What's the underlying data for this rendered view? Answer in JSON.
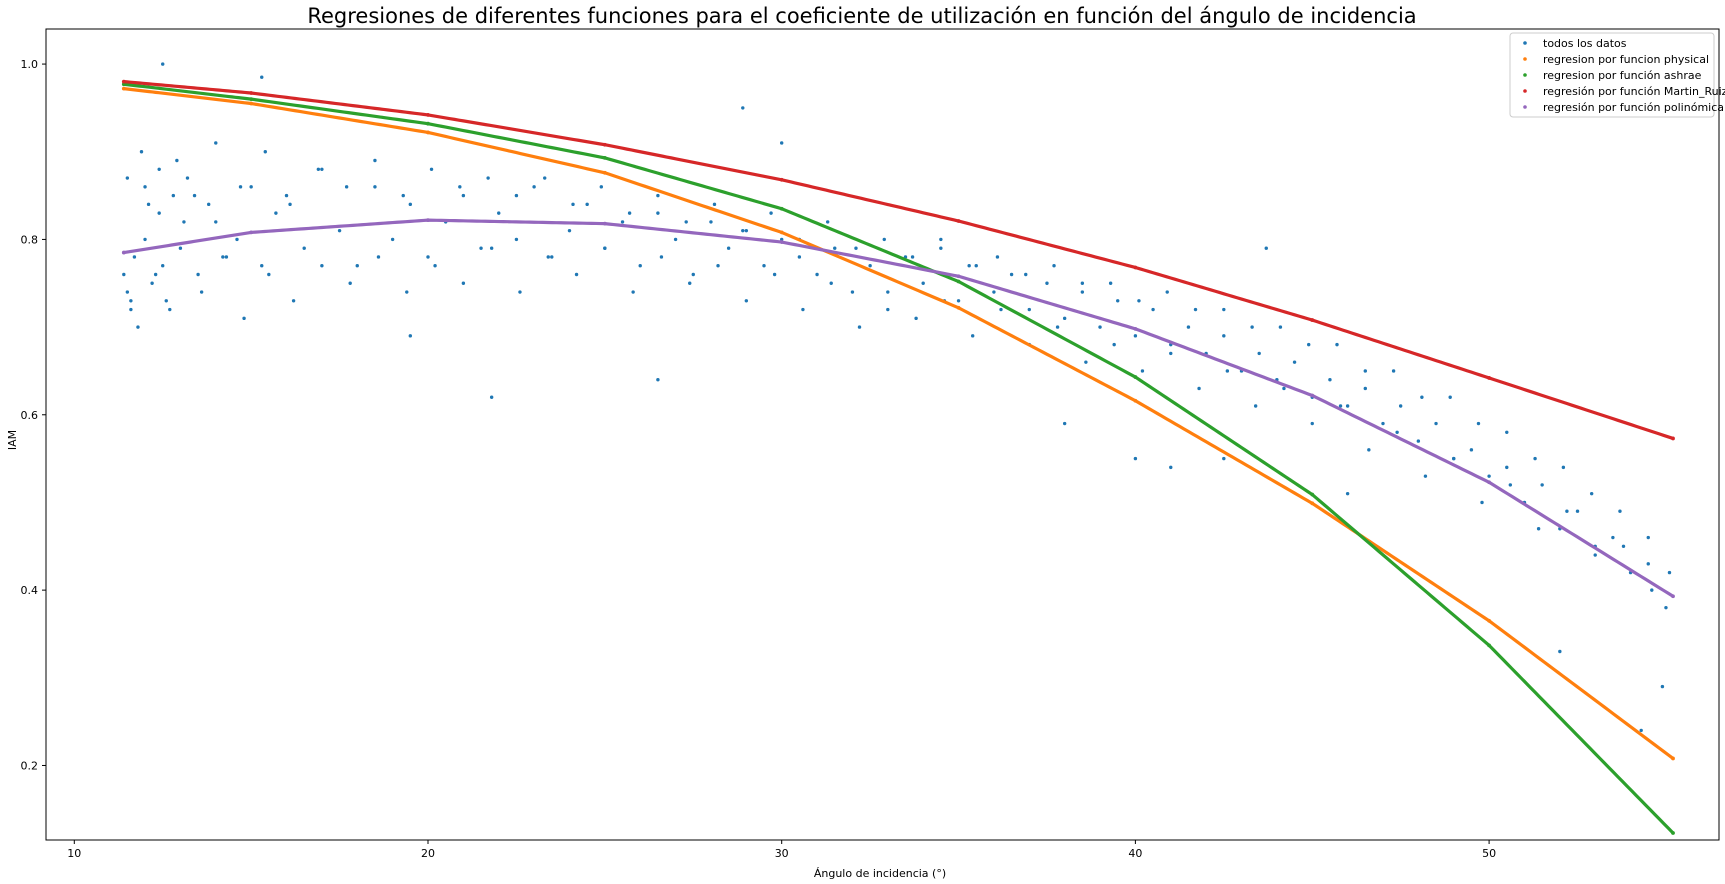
{
  "chart_data": {
    "type": "scatter",
    "title": "Regresiones de diferentes funciones para el coeficiente de utilización en función del ángulo de incidencia",
    "xlabel": "Ángulo de incidencia (°)",
    "ylabel": "IAM",
    "xlim": [
      9.2,
      56.5
    ],
    "ylim": [
      0.115,
      1.04
    ],
    "xticks": [
      10,
      20,
      30,
      40,
      50
    ],
    "xtick_labels": [
      "10",
      "20",
      "30",
      "40",
      "50"
    ],
    "yticks": [
      0.2,
      0.4,
      0.6,
      0.8,
      1.0
    ],
    "ytick_labels": [
      "0.2",
      "0.4",
      "0.6",
      "0.8",
      "1.0"
    ],
    "grid": false,
    "legend_position": "top-right",
    "series": [
      {
        "name": "todos los datos",
        "color": "#1f77b4",
        "kind": "scatter",
        "x": [
          11.4,
          11.5,
          11.6,
          11.7,
          11.8,
          12.0,
          12.1,
          12.2,
          12.4,
          12.5,
          12.6,
          12.8,
          13.0,
          13.2,
          13.5,
          13.8,
          14.0,
          14.3,
          14.6,
          15.0,
          15.3,
          15.7,
          16.0,
          16.5,
          17.0,
          17.5,
          18.0,
          18.5,
          19.0,
          19.5,
          20.0,
          20.5,
          21.0,
          21.5,
          22.0,
          22.5,
          23.0,
          23.5,
          24.0,
          24.5,
          25.0,
          25.5,
          26.0,
          26.5,
          27.0,
          27.5,
          28.0,
          28.5,
          29.0,
          29.5,
          30.0,
          30.5,
          31.0,
          31.5,
          32.0,
          32.5,
          33.0,
          33.5,
          34.0,
          34.5,
          35.0,
          35.5,
          36.0,
          36.5,
          37.0,
          37.5,
          38.0,
          38.5,
          39.0,
          39.5,
          40.0,
          40.5,
          41.0,
          41.5,
          42.0,
          42.5,
          43.0,
          43.5,
          44.0,
          44.5,
          45.0,
          45.5,
          46.0,
          46.5,
          47.0,
          47.5,
          48.0,
          48.5,
          49.0,
          49.5,
          50.0,
          50.5,
          51.0,
          51.5,
          52.0,
          52.5,
          53.0,
          53.5,
          54.0,
          54.5,
          55.0,
          11.6,
          12.0,
          12.3,
          12.7,
          13.1,
          13.6,
          14.2,
          14.8,
          15.5,
          16.2,
          17.0,
          17.8,
          18.6,
          19.4,
          20.2,
          21.0,
          21.8,
          22.6,
          23.4,
          24.2,
          25.0,
          25.8,
          26.6,
          27.4,
          28.2,
          29.0,
          29.8,
          30.6,
          31.4,
          32.2,
          33.0,
          33.8,
          34.6,
          35.4,
          36.2,
          37.0,
          37.8,
          38.6,
          39.4,
          40.2,
          41.0,
          41.8,
          42.6,
          43.4,
          44.2,
          45.0,
          45.8,
          46.6,
          47.4,
          48.2,
          49.0,
          49.8,
          50.6,
          51.4,
          52.2,
          53.0,
          53.8,
          54.6,
          11.5,
          11.9,
          12.4,
          12.9,
          13.4,
          14.0,
          14.7,
          15.4,
          16.1,
          16.9,
          17.7,
          18.5,
          19.3,
          20.1,
          20.9,
          21.7,
          22.5,
          23.3,
          24.1,
          24.9,
          25.7,
          26.5,
          27.3,
          28.1,
          28.9,
          29.7,
          30.5,
          31.3,
          32.1,
          32.9,
          33.7,
          34.5,
          35.3,
          36.1,
          36.9,
          37.7,
          38.5,
          39.3,
          40.1,
          40.9,
          41.7,
          42.5,
          43.3,
          44.1,
          44.9,
          45.7,
          46.5,
          47.3,
          48.1,
          48.9,
          49.7,
          50.5,
          51.3,
          52.1,
          52.9,
          53.7,
          54.5,
          55.1,
          12.5,
          15.3,
          19.5,
          21.8,
          26.5,
          28.9,
          30.0,
          38.0,
          40.0,
          41.0,
          42.5,
          43.7,
          46.0,
          52.0,
          54.3,
          54.9
        ],
        "y": [
          0.76,
          0.74,
          0.72,
          0.78,
          0.7,
          0.86,
          0.84,
          0.75,
          0.88,
          0.77,
          0.73,
          0.85,
          0.79,
          0.87,
          0.76,
          0.84,
          0.82,
          0.78,
          0.8,
          0.86,
          0.77,
          0.83,
          0.85,
          0.79,
          0.88,
          0.81,
          0.77,
          0.86,
          0.8,
          0.84,
          0.78,
          0.82,
          0.85,
          0.79,
          0.83,
          0.8,
          0.86,
          0.78,
          0.81,
          0.84,
          0.79,
          0.82,
          0.77,
          0.83,
          0.8,
          0.76,
          0.82,
          0.79,
          0.81,
          0.77,
          0.8,
          0.78,
          0.76,
          0.79,
          0.74,
          0.77,
          0.72,
          0.78,
          0.75,
          0.8,
          0.73,
          0.77,
          0.74,
          0.76,
          0.72,
          0.75,
          0.71,
          0.74,
          0.7,
          0.73,
          0.69,
          0.72,
          0.68,
          0.7,
          0.67,
          0.69,
          0.65,
          0.67,
          0.64,
          0.66,
          0.62,
          0.64,
          0.61,
          0.63,
          0.59,
          0.61,
          0.57,
          0.59,
          0.55,
          0.56,
          0.53,
          0.54,
          0.5,
          0.52,
          0.47,
          0.49,
          0.45,
          0.46,
          0.42,
          0.43,
          0.38,
          0.73,
          0.8,
          0.76,
          0.72,
          0.82,
          0.74,
          0.78,
          0.71,
          0.76,
          0.73,
          0.77,
          0.75,
          0.78,
          0.74,
          0.77,
          0.75,
          0.79,
          0.74,
          0.78,
          0.76,
          0.79,
          0.74,
          0.78,
          0.75,
          0.77,
          0.73,
          0.76,
          0.72,
          0.75,
          0.7,
          0.74,
          0.71,
          0.73,
          0.69,
          0.72,
          0.68,
          0.7,
          0.66,
          0.68,
          0.65,
          0.67,
          0.63,
          0.65,
          0.61,
          0.63,
          0.59,
          0.61,
          0.56,
          0.58,
          0.53,
          0.55,
          0.5,
          0.52,
          0.47,
          0.49,
          0.44,
          0.45,
          0.4,
          0.87,
          0.9,
          0.83,
          0.89,
          0.85,
          0.91,
          0.86,
          0.9,
          0.84,
          0.88,
          0.86,
          0.89,
          0.85,
          0.88,
          0.86,
          0.87,
          0.85,
          0.87,
          0.84,
          0.86,
          0.83,
          0.85,
          0.82,
          0.84,
          0.81,
          0.83,
          0.8,
          0.82,
          0.79,
          0.8,
          0.78,
          0.79,
          0.77,
          0.78,
          0.76,
          0.77,
          0.75,
          0.75,
          0.73,
          0.74,
          0.72,
          0.72,
          0.7,
          0.7,
          0.68,
          0.68,
          0.65,
          0.65,
          0.62,
          0.62,
          0.59,
          0.58,
          0.55,
          0.54,
          0.51,
          0.49,
          0.46,
          0.42,
          1.0,
          0.985,
          0.69,
          0.62,
          0.64,
          0.95,
          0.91,
          0.59,
          0.55,
          0.54,
          0.55,
          0.79,
          0.51,
          0.33,
          0.24,
          0.29
        ]
      },
      {
        "name": "regresion por funcion physical",
        "color": "#ff7f0e",
        "kind": "curve",
        "x": [
          11.4,
          15,
          20,
          25,
          30,
          35,
          40,
          45,
          50,
          55.2
        ],
        "y": [
          0.972,
          0.955,
          0.922,
          0.876,
          0.808,
          0.722,
          0.616,
          0.499,
          0.365,
          0.208
        ]
      },
      {
        "name": "regresion por función ashrae",
        "color": "#2ca02c",
        "kind": "curve",
        "x": [
          11.4,
          15,
          20,
          25,
          30,
          35,
          40,
          45,
          50,
          55.2
        ],
        "y": [
          0.977,
          0.96,
          0.932,
          0.893,
          0.835,
          0.752,
          0.643,
          0.509,
          0.337,
          0.123
        ]
      },
      {
        "name": "regresión por función Martin_Ruiz",
        "color": "#d62728",
        "kind": "curve",
        "x": [
          11.4,
          15,
          20,
          25,
          30,
          35,
          40,
          45,
          50,
          55.2
        ],
        "y": [
          0.98,
          0.967,
          0.942,
          0.908,
          0.868,
          0.821,
          0.768,
          0.708,
          0.642,
          0.573
        ]
      },
      {
        "name": "regresión por función polinómica",
        "color": "#9467bd",
        "kind": "curve",
        "x": [
          11.4,
          15,
          20,
          25,
          30,
          35,
          40,
          45,
          50,
          55.2
        ],
        "y": [
          0.785,
          0.808,
          0.822,
          0.818,
          0.797,
          0.758,
          0.698,
          0.622,
          0.523,
          0.393
        ]
      }
    ]
  }
}
